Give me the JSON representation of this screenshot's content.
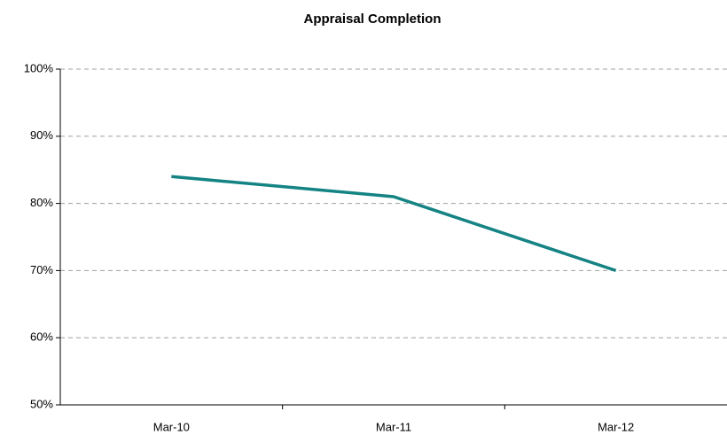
{
  "chart_data": {
    "type": "line",
    "title": "Appraisal Completion",
    "categories": [
      "Mar-10",
      "Mar-11",
      "Mar-12"
    ],
    "series": [
      {
        "name": "Appraisal Completion",
        "color": "#138383",
        "values": [
          84,
          81,
          70
        ]
      }
    ],
    "ylim": [
      50,
      100
    ],
    "yticks": [
      {
        "value": 50,
        "label": "50%"
      },
      {
        "value": 60,
        "label": "60%"
      },
      {
        "value": 70,
        "label": "70%"
      },
      {
        "value": 80,
        "label": "80%"
      },
      {
        "value": 90,
        "label": "90%"
      },
      {
        "value": 100,
        "label": "100%"
      }
    ],
    "grid": true
  }
}
